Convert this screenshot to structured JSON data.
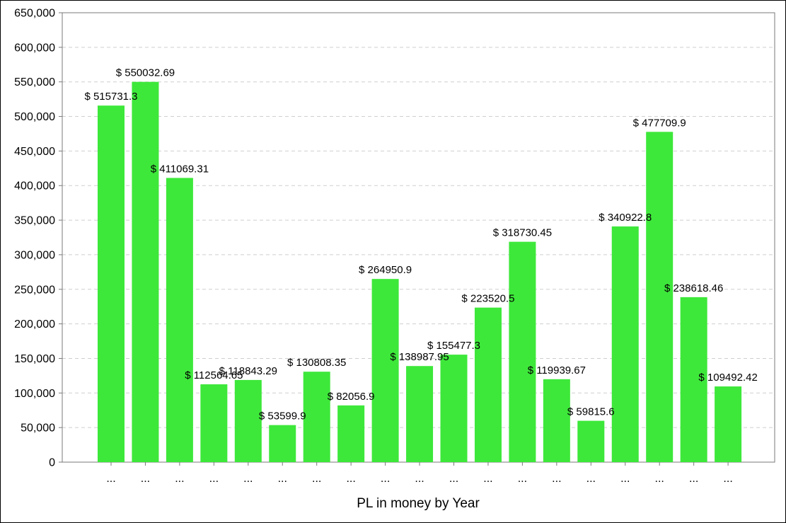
{
  "chart_data": {
    "type": "bar",
    "title": "",
    "xlabel": "PL in money by Year",
    "ylabel": "",
    "ylim": [
      0,
      650000
    ],
    "yticks": [
      0,
      50000,
      100000,
      150000,
      200000,
      250000,
      300000,
      350000,
      400000,
      450000,
      500000,
      550000,
      600000,
      650000
    ],
    "ytick_labels": [
      "0",
      "50,000",
      "100,000",
      "150,000",
      "200,000",
      "250,000",
      "300,000",
      "350,000",
      "400,000",
      "450,000",
      "500,000",
      "550,000",
      "600,000",
      "650,000"
    ],
    "grid": true,
    "bar_color": "#3de83a",
    "categories": [
      "...",
      "...",
      "...",
      "...",
      "...",
      "...",
      "...",
      "...",
      "...",
      "...",
      "...",
      "...",
      "...",
      "...",
      "...",
      "...",
      "...",
      "...",
      "..."
    ],
    "values": [
      515731.3,
      550032.69,
      411069.31,
      112564.65,
      118843.29,
      53599.9,
      130808.35,
      82056.9,
      264950.9,
      138987.95,
      155477.3,
      223520.5,
      318730.45,
      119939.67,
      59815.6,
      340922.8,
      477709.9,
      238618.46,
      109492.42
    ],
    "data_labels": [
      "$ 515731.3",
      "$ 550032.69",
      "$ 411069.31",
      "$ 112564.65",
      "$ 118843.29",
      "$ 53599.9",
      "$ 130808.35",
      "$ 82056.9",
      "$ 264950.9",
      "$ 138987.95",
      "$ 155477.3",
      "$ 223520.5",
      "$ 318730.45",
      "$ 119939.67",
      "$ 59815.6",
      "$ 340922.8",
      "$ 477709.9",
      "$ 238618.46",
      "$ 109492.42"
    ]
  }
}
